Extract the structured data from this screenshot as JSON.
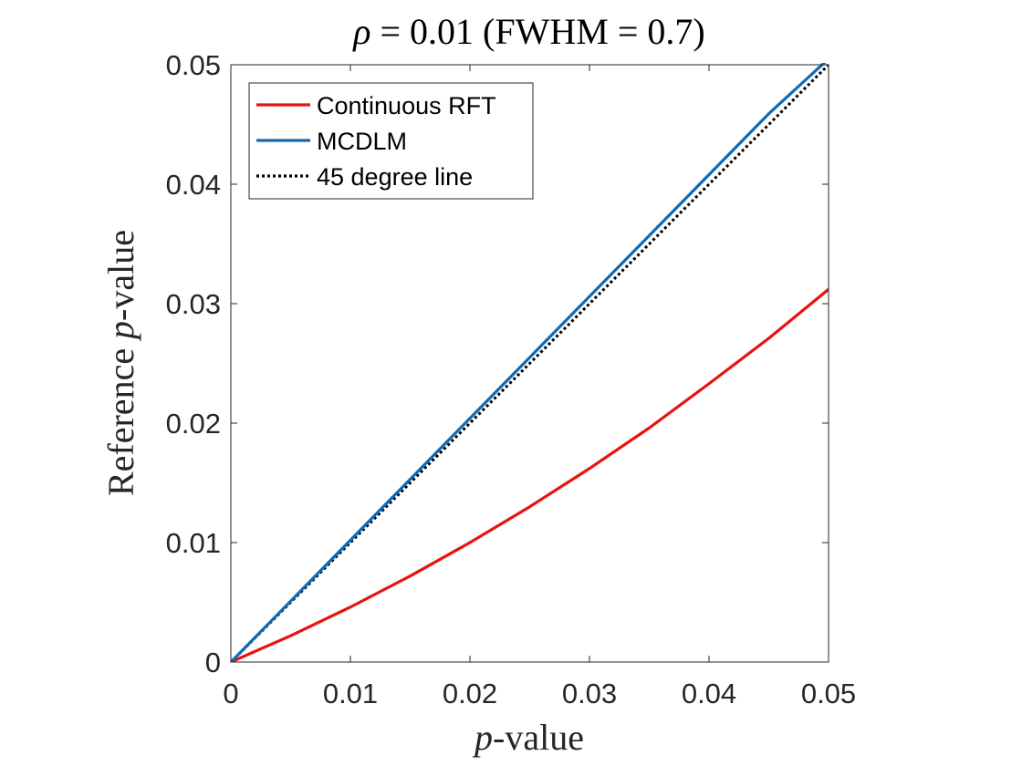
{
  "chart_data": {
    "type": "line",
    "title": {
      "symbol": "ρ",
      "text": " = 0.01 (FWHM = 0.7)"
    },
    "xlabel": {
      "symbol": "p",
      "text": "-value"
    },
    "ylabel": {
      "prefix": "Reference ",
      "symbol": "p",
      "text": "-value"
    },
    "xlim": [
      0,
      0.05
    ],
    "ylim": [
      0,
      0.05
    ],
    "xticks": [
      0,
      0.01,
      0.02,
      0.03,
      0.04,
      0.05
    ],
    "xtick_labels": [
      "0",
      "0.01",
      "0.02",
      "0.03",
      "0.04",
      "0.05"
    ],
    "yticks": [
      0,
      0.01,
      0.02,
      0.03,
      0.04,
      0.05
    ],
    "ytick_labels": [
      "0",
      "0.01",
      "0.02",
      "0.03",
      "0.04",
      "0.05"
    ],
    "grid": false,
    "legend_position": "top-left",
    "series": [
      {
        "name": "Continuous RFT",
        "color": "#e8130f",
        "style": "solid",
        "x": [
          0,
          0.005,
          0.01,
          0.015,
          0.02,
          0.025,
          0.03,
          0.035,
          0.04,
          0.045,
          0.05
        ],
        "y": [
          0,
          0.0022,
          0.0046,
          0.0072,
          0.01,
          0.013,
          0.0162,
          0.0196,
          0.0233,
          0.0271,
          0.0312
        ]
      },
      {
        "name": "MCDLM",
        "color": "#0f6ab4",
        "style": "solid",
        "x": [
          0,
          0.005,
          0.01,
          0.015,
          0.02,
          0.025,
          0.03,
          0.035,
          0.04,
          0.045,
          0.05
        ],
        "y": [
          0,
          0.0051,
          0.0102,
          0.0153,
          0.0204,
          0.0255,
          0.0306,
          0.0357,
          0.0408,
          0.0459,
          0.0505
        ]
      },
      {
        "name": "45 degree line",
        "color": "#000000",
        "style": "dotted",
        "x": [
          0,
          0.05
        ],
        "y": [
          0,
          0.05
        ]
      }
    ]
  }
}
